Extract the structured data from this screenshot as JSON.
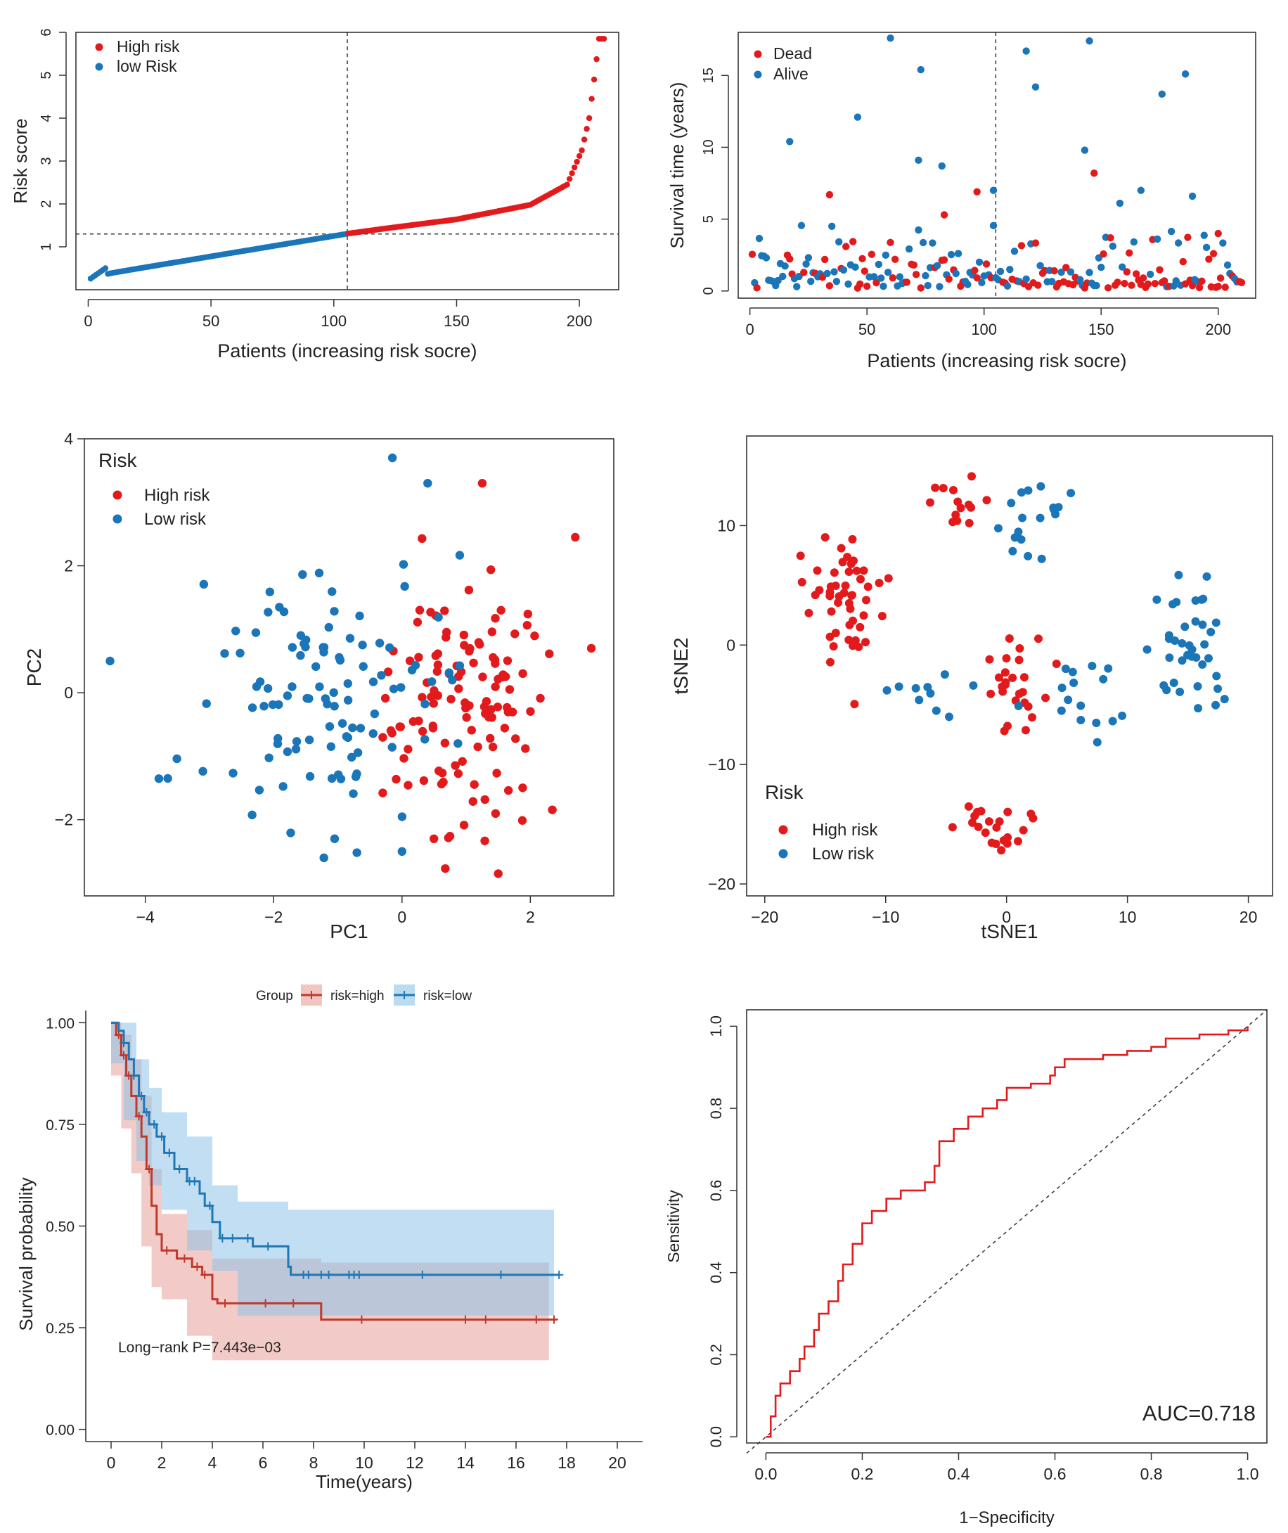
{
  "colors": {
    "high": "#e31a1c",
    "low": "#1a75b9",
    "km_high": "#c0392b",
    "km_low": "#1f77b4",
    "km_high_band": "#e8a09a",
    "km_low_band": "#8ec3e8",
    "roc": "#e31a1c"
  },
  "chart_data": [
    {
      "id": "risk-score",
      "type": "scatter",
      "xlabel": "Patients (increasing risk socre)",
      "ylabel": "Risk score",
      "xticks": [
        "0",
        "50",
        "100",
        "150",
        "200"
      ],
      "yticks": [
        "1",
        "2",
        "3",
        "4",
        "5",
        "6"
      ],
      "xlim": [
        -5,
        216
      ],
      "ylim": [
        0,
        6
      ],
      "n_patients": 210,
      "cutoff_index": 105,
      "cutoff_score": 1.3,
      "low_score_range": [
        0.2,
        1.3
      ],
      "high_score_anchors": [
        [
          106,
          1.31
        ],
        [
          120,
          1.42
        ],
        [
          150,
          1.64
        ],
        [
          180,
          1.98
        ],
        [
          195,
          2.45
        ],
        [
          201,
          3.25
        ],
        [
          204,
          4.0
        ],
        [
          206,
          4.9
        ],
        [
          208,
          5.85
        ]
      ],
      "legend": [
        {
          "label": "High risk",
          "color_key": "high"
        },
        {
          "label": "low Risk",
          "color_key": "low"
        }
      ],
      "legend_position": "top-left"
    },
    {
      "id": "survival-status",
      "type": "scatter",
      "xlabel": "Patients (increasing risk socre)",
      "ylabel": "Survival time (years)",
      "xticks": [
        "0",
        "50",
        "100",
        "150",
        "200"
      ],
      "yticks": [
        "0",
        "5",
        "10",
        "15"
      ],
      "xlim": [
        -5,
        216
      ],
      "ylim": [
        -0.5,
        18
      ],
      "cutoff_index": 105,
      "legend": [
        {
          "label": "Dead",
          "color_key": "high"
        },
        {
          "label": "Alive",
          "color_key": "low"
        }
      ],
      "legend_position": "top-left",
      "highlight_points": [
        [
          60,
          17.6,
          "alive"
        ],
        [
          145,
          17.4,
          "alive"
        ],
        [
          73,
          15.4,
          "alive"
        ],
        [
          118,
          16.7,
          "alive"
        ],
        [
          186,
          15.1,
          "alive"
        ],
        [
          176,
          13.7,
          "alive"
        ],
        [
          122,
          14.2,
          "alive"
        ],
        [
          46,
          12.1,
          "alive"
        ],
        [
          17,
          10.4,
          "alive"
        ],
        [
          143,
          9.8,
          "alive"
        ],
        [
          72,
          9.1,
          "alive"
        ],
        [
          82,
          8.7,
          "alive"
        ],
        [
          147,
          8.2,
          "dead"
        ],
        [
          34,
          6.7,
          "dead"
        ],
        [
          97,
          6.9,
          "dead"
        ],
        [
          104,
          7.0,
          "alive"
        ],
        [
          189,
          6.6,
          "alive"
        ],
        [
          167,
          7.0,
          "alive"
        ],
        [
          83,
          5.3,
          "dead"
        ],
        [
          200,
          4.0,
          "dead"
        ]
      ]
    },
    {
      "id": "pca",
      "type": "scatter",
      "xlabel": "PC1",
      "ylabel": "PC2",
      "xticks": [
        "−4",
        "−2",
        "0",
        "2"
      ],
      "yticks": [
        "−2",
        "0",
        "2",
        "4"
      ],
      "xlim": [
        -4.95,
        3.3
      ],
      "ylim": [
        -3.2,
        4.0
      ],
      "legend_title": "Risk",
      "legend": [
        {
          "label": "High risk",
          "color_key": "high"
        },
        {
          "label": "Low risk",
          "color_key": "low"
        }
      ],
      "legend_position": "top-left",
      "highlight_points": [
        [
          -0.15,
          3.7,
          "low"
        ],
        [
          0.4,
          3.3,
          "low"
        ],
        [
          1.25,
          3.3,
          "high"
        ],
        [
          2.7,
          2.45,
          "high"
        ],
        [
          2.95,
          0.7,
          "high"
        ],
        [
          -4.55,
          0.5,
          "low"
        ],
        [
          -3.65,
          -1.35,
          "low"
        ],
        [
          1.5,
          -2.85,
          "high"
        ],
        [
          -1.05,
          -2.3,
          "low"
        ],
        [
          0.0,
          -2.5,
          "low"
        ]
      ]
    },
    {
      "id": "tsne",
      "type": "scatter",
      "xlabel": "tSNE1",
      "ylabel": "tSNE2",
      "xticks": [
        "−20",
        "−10",
        "0",
        "10",
        "20"
      ],
      "yticks": [
        "−20",
        "−10",
        "0",
        "10"
      ],
      "xlim": [
        -21.5,
        22
      ],
      "ylim": [
        -21,
        17.5
      ],
      "legend_title": "Risk",
      "legend": [
        {
          "label": "High risk",
          "color_key": "high"
        },
        {
          "label": "Low risk",
          "color_key": "low"
        }
      ],
      "legend_position": "bottom-left"
    },
    {
      "id": "km",
      "type": "line",
      "xlabel": "Time(years)",
      "ylabel": "Survival probability",
      "xticks": [
        "0",
        "2",
        "4",
        "6",
        "8",
        "10",
        "12",
        "14",
        "16",
        "18",
        "20"
      ],
      "yticks": [
        "0.00",
        "0.25",
        "0.50",
        "0.75",
        "1.00"
      ],
      "xlim": [
        -1,
        21
      ],
      "ylim": [
        -0.03,
        1.03
      ],
      "legend_title": "Group",
      "legend_position": "top",
      "annotation": "Long−rank P=7.443e−03",
      "series": [
        {
          "name": "risk=high",
          "color_key": "km_high",
          "band_key": "km_high_band",
          "steps": [
            [
              0,
              1.0
            ],
            [
              0.2,
              0.97
            ],
            [
              0.4,
              0.92
            ],
            [
              0.6,
              0.87
            ],
            [
              0.8,
              0.82
            ],
            [
              1.0,
              0.77
            ],
            [
              1.2,
              0.72
            ],
            [
              1.4,
              0.64
            ],
            [
              1.6,
              0.55
            ],
            [
              1.8,
              0.48
            ],
            [
              2.0,
              0.44
            ],
            [
              2.6,
              0.42
            ],
            [
              3.2,
              0.4
            ],
            [
              3.6,
              0.38
            ],
            [
              4.0,
              0.32
            ],
            [
              4.2,
              0.31
            ],
            [
              8.3,
              0.27
            ],
            [
              17.6,
              0.27
            ]
          ],
          "lower": [
            [
              0,
              1.0
            ],
            [
              0.4,
              0.87
            ],
            [
              0.8,
              0.74
            ],
            [
              1.2,
              0.63
            ],
            [
              1.6,
              0.45
            ],
            [
              2.0,
              0.35
            ],
            [
              3.0,
              0.32
            ],
            [
              4.0,
              0.23
            ],
            [
              8.3,
              0.17
            ],
            [
              17.3,
              0.17
            ]
          ],
          "upper": [
            [
              0,
              1.0
            ],
            [
              0.4,
              0.97
            ],
            [
              0.8,
              0.91
            ],
            [
              1.2,
              0.82
            ],
            [
              1.6,
              0.64
            ],
            [
              2.0,
              0.53
            ],
            [
              3.0,
              0.49
            ],
            [
              4.0,
              0.42
            ],
            [
              8.3,
              0.41
            ],
            [
              17.3,
              0.41
            ]
          ],
          "censor_times": [
            0.3,
            0.5,
            0.7,
            1.1,
            1.5,
            2.2,
            2.9,
            3.4,
            3.7,
            4.5,
            6.1,
            7.2,
            9.9,
            14.0,
            14.8,
            16.8,
            17.5
          ]
        },
        {
          "name": "risk=low",
          "color_key": "km_low",
          "band_key": "km_low_band",
          "steps": [
            [
              0,
              1.0
            ],
            [
              0.3,
              0.98
            ],
            [
              0.5,
              0.95
            ],
            [
              0.7,
              0.91
            ],
            [
              0.9,
              0.87
            ],
            [
              1.1,
              0.82
            ],
            [
              1.3,
              0.78
            ],
            [
              1.5,
              0.75
            ],
            [
              1.8,
              0.72
            ],
            [
              2.1,
              0.68
            ],
            [
              2.5,
              0.64
            ],
            [
              3.0,
              0.61
            ],
            [
              3.5,
              0.58
            ],
            [
              3.7,
              0.55
            ],
            [
              4.0,
              0.51
            ],
            [
              4.3,
              0.47
            ],
            [
              5.2,
              0.47
            ],
            [
              5.6,
              0.45
            ],
            [
              6.5,
              0.45
            ],
            [
              7.0,
              0.4
            ],
            [
              7.1,
              0.38
            ],
            [
              17.7,
              0.38
            ]
          ],
          "lower": [
            [
              0,
              1.0
            ],
            [
              0.5,
              0.9
            ],
            [
              1.0,
              0.76
            ],
            [
              1.5,
              0.66
            ],
            [
              2.0,
              0.6
            ],
            [
              3.0,
              0.54
            ],
            [
              4.0,
              0.44
            ],
            [
              5.0,
              0.39
            ],
            [
              7.0,
              0.28
            ],
            [
              17.5,
              0.28
            ]
          ],
          "upper": [
            [
              0,
              1.0
            ],
            [
              0.5,
              1.0
            ],
            [
              1.0,
              0.91
            ],
            [
              1.5,
              0.84
            ],
            [
              2.0,
              0.78
            ],
            [
              3.0,
              0.72
            ],
            [
              4.0,
              0.6
            ],
            [
              5.0,
              0.56
            ],
            [
              7.0,
              0.54
            ],
            [
              17.5,
              0.54
            ]
          ],
          "censor_times": [
            0.5,
            0.9,
            1.2,
            1.4,
            1.7,
            2.0,
            2.3,
            2.7,
            3.1,
            3.3,
            3.9,
            4.4,
            4.8,
            5.4,
            6.2,
            7.6,
            7.8,
            8.3,
            8.6,
            9.4,
            9.6,
            9.8,
            12.3,
            15.4,
            17.7
          ]
        }
      ]
    },
    {
      "id": "roc",
      "type": "line",
      "xlabel": "1−Specificity",
      "ylabel": "Sensitivity",
      "xticks": [
        "0.0",
        "0.2",
        "0.4",
        "0.6",
        "0.8",
        "1.0"
      ],
      "yticks": [
        "0.0",
        "0.2",
        "0.4",
        "0.6",
        "0.8",
        "1.0"
      ],
      "xlim": [
        -0.04,
        1.04
      ],
      "ylim": [
        -0.015,
        1.04
      ],
      "auc_label": "AUC=0.718",
      "curve": [
        [
          0,
          0
        ],
        [
          0.01,
          0.05
        ],
        [
          0.02,
          0.1
        ],
        [
          0.03,
          0.13
        ],
        [
          0.05,
          0.16
        ],
        [
          0.07,
          0.19
        ],
        [
          0.08,
          0.22
        ],
        [
          0.1,
          0.26
        ],
        [
          0.11,
          0.3
        ],
        [
          0.13,
          0.33
        ],
        [
          0.15,
          0.38
        ],
        [
          0.16,
          0.42
        ],
        [
          0.18,
          0.47
        ],
        [
          0.2,
          0.52
        ],
        [
          0.22,
          0.55
        ],
        [
          0.25,
          0.58
        ],
        [
          0.28,
          0.6
        ],
        [
          0.33,
          0.62
        ],
        [
          0.35,
          0.66
        ],
        [
          0.36,
          0.72
        ],
        [
          0.39,
          0.75
        ],
        [
          0.42,
          0.78
        ],
        [
          0.45,
          0.8
        ],
        [
          0.48,
          0.82
        ],
        [
          0.5,
          0.85
        ],
        [
          0.55,
          0.86
        ],
        [
          0.59,
          0.88
        ],
        [
          0.6,
          0.9
        ],
        [
          0.62,
          0.92
        ],
        [
          0.7,
          0.93
        ],
        [
          0.75,
          0.94
        ],
        [
          0.8,
          0.95
        ],
        [
          0.83,
          0.97
        ],
        [
          0.9,
          0.98
        ],
        [
          0.96,
          0.99
        ],
        [
          1.0,
          1.0
        ]
      ]
    }
  ]
}
